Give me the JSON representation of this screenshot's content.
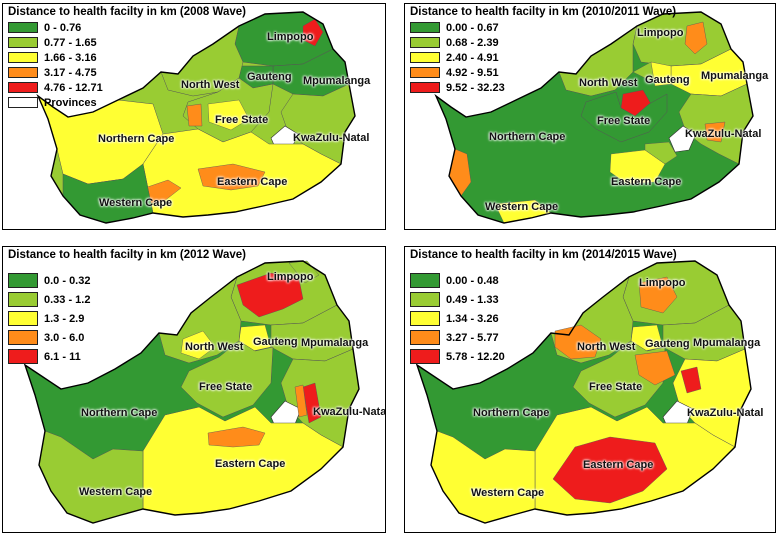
{
  "panels": [
    {
      "title": "Distance to health facilty in km (2008 Wave)",
      "legend": [
        {
          "label": "0 - 0.76",
          "color": "#339933"
        },
        {
          "label": "0.77 - 1.65",
          "color": "#99cc33"
        },
        {
          "label": "1.66 - 3.16",
          "color": "#ffff33"
        },
        {
          "label": "3.17 - 4.75",
          "color": "#ff8c1a"
        },
        {
          "label": "4.76 - 12.71",
          "color": "#ee1c1c"
        },
        {
          "label": "Provinces",
          "color": "#ffffff"
        }
      ],
      "provinces": {
        "limpopo": "Limpopo",
        "north_west": "North West",
        "gauteng": "Gauteng",
        "mpumalanga": "Mpumalanga",
        "free_state": "Free State",
        "northern_cape": "Northern Cape",
        "kwazulu_natal": "KwaZulu-Natal",
        "eastern_cape": "Eastern Cape",
        "western_cape": "Western Cape"
      }
    },
    {
      "title": "Distance to health facilty in km (2010/2011 Wave)",
      "legend": [
        {
          "label": "0.00 - 0.67",
          "color": "#339933"
        },
        {
          "label": "0.68 - 2.39",
          "color": "#99cc33"
        },
        {
          "label": "2.40 - 4.91",
          "color": "#ffff33"
        },
        {
          "label": "4.92 - 9.51",
          "color": "#ff8c1a"
        },
        {
          "label": "9.52 - 32.23",
          "color": "#ee1c1c"
        }
      ],
      "provinces": {
        "limpopo": "Limpopo",
        "north_west": "North West",
        "gauteng": "Gauteng",
        "mpumalanga": "Mpumalanga",
        "free_state": "Free State",
        "northern_cape": "Northern Cape",
        "kwazulu_natal": "KwaZulu-Natal",
        "eastern_cape": "Eastern Cape",
        "western_cape": "Western Cape"
      }
    },
    {
      "title": "Distance to health facilty in km (2012 Wave)",
      "legend": [
        {
          "label": "0.0 - 0.32",
          "color": "#339933"
        },
        {
          "label": "0.33 - 1.2",
          "color": "#99cc33"
        },
        {
          "label": "1.3 - 2.9",
          "color": "#ffff33"
        },
        {
          "label": "3.0 - 6.0",
          "color": "#ff8c1a"
        },
        {
          "label": "6.1 - 11",
          "color": "#ee1c1c"
        }
      ],
      "provinces": {
        "limpopo": "Limpopo",
        "north_west": "North West",
        "gauteng": "Gauteng",
        "mpumalanga": "Mpumalanga",
        "free_state": "Free State",
        "northern_cape": "Northern Cape",
        "kwazulu_natal": "KwaZulu-Natal",
        "eastern_cape": "Eastern Cape",
        "western_cape": "Western Cape"
      }
    },
    {
      "title": "Distance to health facilty in km (2014/2015 Wave)",
      "legend": [
        {
          "label": "0.00 - 0.48",
          "color": "#339933"
        },
        {
          "label": "0.49 - 1.33",
          "color": "#99cc33"
        },
        {
          "label": "1.34 - 3.26",
          "color": "#ffff33"
        },
        {
          "label": "3.27 - 5.77",
          "color": "#ff8c1a"
        },
        {
          "label": "5.78 - 12.20",
          "color": "#ee1c1c"
        }
      ],
      "provinces": {
        "limpopo": "Limpopo",
        "north_west": "North West",
        "gauteng": "Gauteng",
        "mpumalanga": "Mpumalanga",
        "free_state": "Free State",
        "northern_cape": "Northern Cape",
        "kwazulu_natal": "KwaZulu-Natal",
        "eastern_cape": "Eastern Cape",
        "western_cape": "Western Cape"
      }
    }
  ]
}
